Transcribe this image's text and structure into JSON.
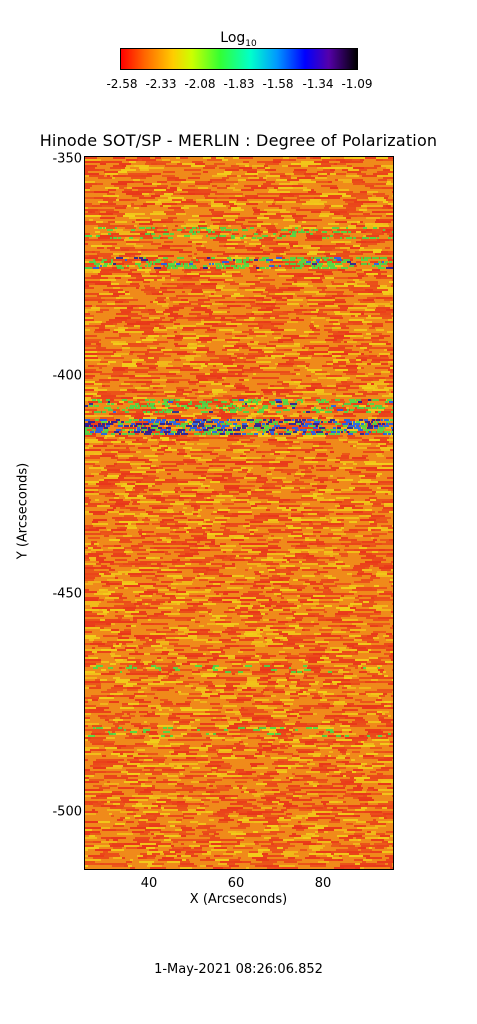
{
  "colorbar": {
    "title_main": "Log",
    "title_sub": "10",
    "ticks": [
      "-2.58",
      "-2.33",
      "-2.08",
      "-1.83",
      "-1.58",
      "-1.34",
      "-1.09"
    ]
  },
  "plot": {
    "title": "Hinode SOT/SP - MERLIN : Degree of Polarization",
    "y_axis_label": "Y (Arcseconds)",
    "x_axis_label": "X (Arcseconds)",
    "y_ticks": [
      "-350",
      "-400",
      "-450",
      "-500"
    ],
    "x_ticks": [
      "40",
      "60",
      "80"
    ],
    "colors": {
      "background": "#f08a1a",
      "low": "#e8321a",
      "mid": "#f2d21a",
      "high_green": "#3fe04a",
      "high_blue": "#1060ff",
      "peak": "#1a1aa0"
    }
  },
  "timestamp": "1-May-2021 08:26:06.852"
}
